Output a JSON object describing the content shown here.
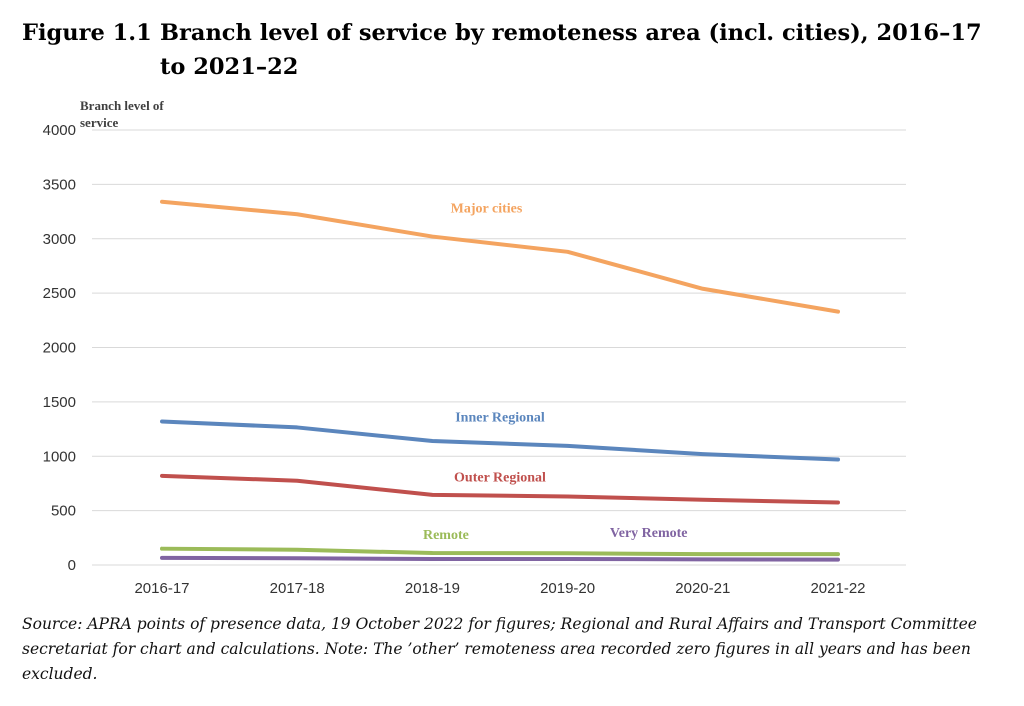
{
  "figure": {
    "number": "Figure 1.1",
    "title": "Branch level of service by remoteness area (incl. cities), 2016–17\nto 2021–22"
  },
  "chart_data": {
    "type": "line",
    "ylabel": [
      "Branch level of",
      "service"
    ],
    "xlabel": "",
    "ylim": [
      0,
      4000
    ],
    "yticks": [
      0,
      500,
      1000,
      1500,
      2000,
      2500,
      3000,
      3500,
      4000
    ],
    "grid": true,
    "legend": "none (inline series labels)",
    "categories": [
      "2016-17",
      "2017-18",
      "2018-19",
      "2019-20",
      "2020-21",
      "2021-22"
    ],
    "series": [
      {
        "name": "Major cities",
        "color": "#F4A460",
        "values": [
          3340,
          3225,
          3020,
          2880,
          2540,
          2330
        ]
      },
      {
        "name": "Inner Regional",
        "color": "#5B86BD",
        "values": [
          1320,
          1265,
          1140,
          1095,
          1020,
          970
        ]
      },
      {
        "name": "Outer Regional",
        "color": "#C0504D",
        "values": [
          820,
          775,
          645,
          630,
          600,
          575
        ]
      },
      {
        "name": "Remote",
        "color": "#9BBB59",
        "values": [
          150,
          140,
          110,
          108,
          100,
          100
        ]
      },
      {
        "name": "Very Remote",
        "color": "#8064A2",
        "values": [
          65,
          62,
          55,
          55,
          52,
          50
        ]
      }
    ]
  },
  "source": "Source: APRA points of presence data, 19 October 2022 for figures; Regional and Rural Affairs and Transport Committee secretariat for chart and calculations. Note: The ’other’ remoteness area recorded zero figures in all years and has been excluded."
}
